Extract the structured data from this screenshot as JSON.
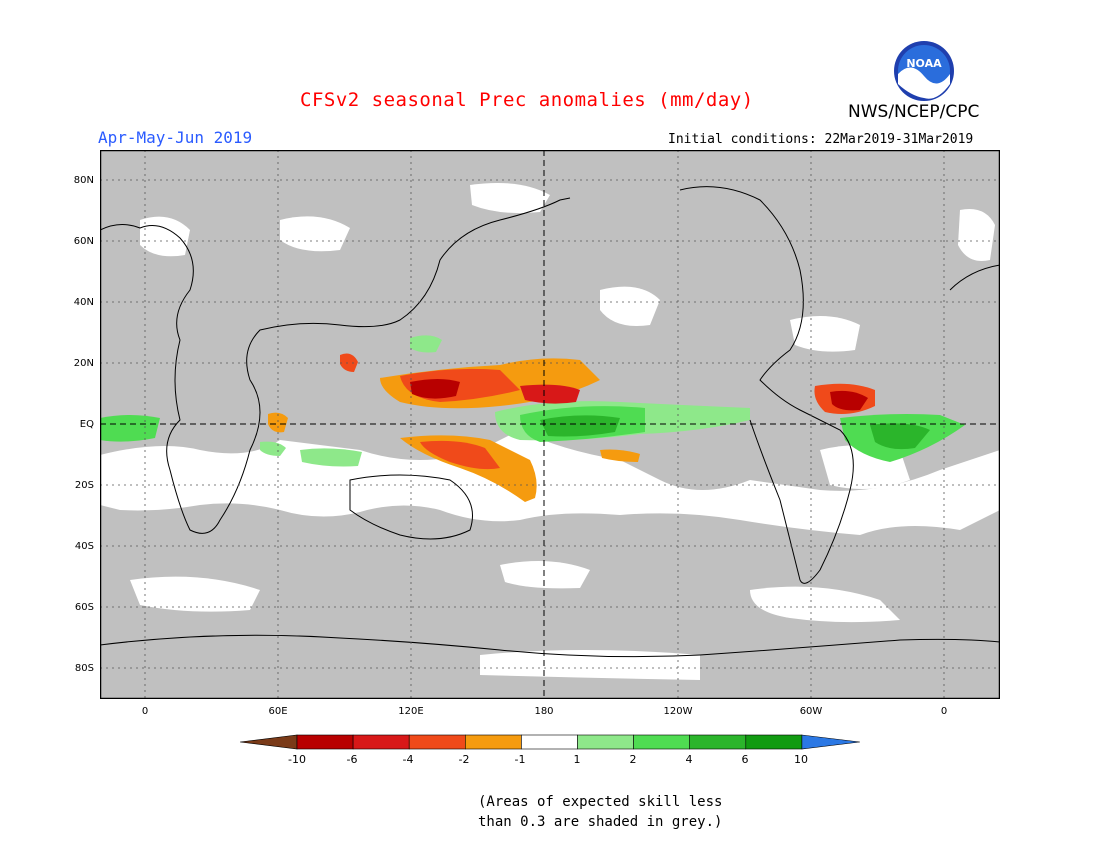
{
  "header": {
    "title": "CFSv2 seasonal Prec anomalies (mm/day)",
    "period": "Apr-May-Jun 2019",
    "agency": "NWS/NCEP/CPC",
    "initial_conditions": "Initial conditions: 22Mar2019-31Mar2019",
    "logo_text": "NOAA"
  },
  "map": {
    "y_labels": [
      "80N",
      "60N",
      "40N",
      "20N",
      "EQ",
      "20S",
      "40S",
      "60S",
      "80S"
    ],
    "x_labels": [
      "0",
      "60E",
      "120E",
      "180",
      "120W",
      "60W",
      "0"
    ],
    "background_color": "#c0c0c0"
  },
  "legend": {
    "labels": [
      "-10",
      "-6",
      "-4",
      "-2",
      "-1",
      "1",
      "2",
      "4",
      "6",
      "10"
    ],
    "colors": [
      "#7a3a18",
      "#b80000",
      "#d81818",
      "#f04a1a",
      "#f59b0f",
      "#ffffff",
      "#8ee88a",
      "#4fdc52",
      "#2bb52b",
      "#119b11",
      "#2b78e4"
    ]
  },
  "note": {
    "line1": "(Areas of expected skill less",
    "line2": "than 0.3 are shaded in grey.)"
  }
}
